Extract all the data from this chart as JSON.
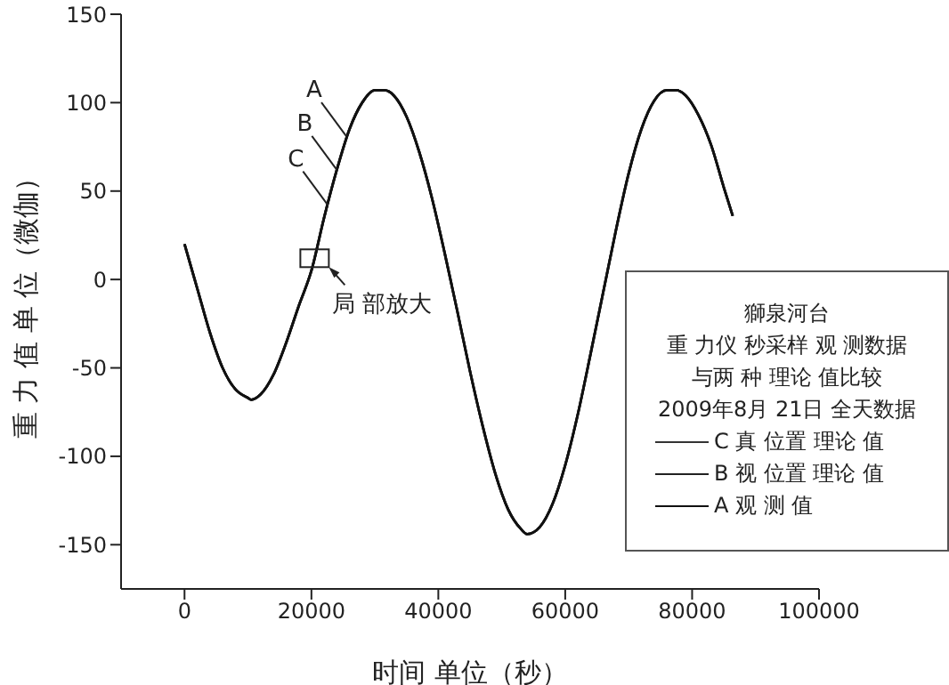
{
  "chart_data": {
    "type": "line",
    "xlabel": "时间 单位（秒）",
    "ylabel": "重 力 值 单 位（微伽）",
    "legend_title": "獅泉河台",
    "legend": "bottom right",
    "grid": false,
    "xlim": [
      -10000,
      100000
    ],
    "xticks": [
      0,
      20000,
      40000,
      60000,
      80000,
      100000
    ],
    "ylim": [
      -175,
      150
    ],
    "yticks": [
      -150,
      -100,
      -50,
      0,
      50,
      100,
      150
    ],
    "x": [
      0,
      2000,
      4000,
      6000,
      8000,
      10000,
      10500,
      12000,
      14000,
      16000,
      18000,
      20000,
      22000,
      24000,
      26000,
      28000,
      30000,
      31500,
      33000,
      35000,
      37000,
      39000,
      41000,
      43000,
      45000,
      47000,
      49000,
      51000,
      53000,
      54000,
      55000,
      56000,
      58000,
      60000,
      62000,
      64000,
      66000,
      68000,
      70000,
      72000,
      74000,
      76000,
      77500,
      79000,
      81000,
      83000,
      85000,
      86400
    ],
    "series": [
      {
        "name": "C 真 位置 理论 值",
        "color": "#333333",
        "values": [
          20,
          -5,
          -30,
          -50,
          -62,
          -67,
          -68,
          -65,
          -54,
          -36,
          -15,
          5,
          35,
          62,
          85,
          100,
          107,
          107,
          104,
          92,
          72,
          46,
          15,
          -18,
          -52,
          -83,
          -110,
          -130,
          -141,
          -144,
          -143,
          -140,
          -127,
          -105,
          -76,
          -42,
          -7,
          28,
          60,
          85,
          101,
          107,
          107,
          104,
          93,
          76,
          52,
          36
        ]
      },
      {
        "name": "B 视 位置 理论 值",
        "color": "#222222",
        "values": [
          20,
          -5,
          -30,
          -50,
          -62,
          -67,
          -68,
          -65,
          -54,
          -36,
          -15,
          5,
          35,
          62,
          85,
          100,
          107,
          107,
          104,
          92,
          72,
          46,
          15,
          -18,
          -52,
          -83,
          -110,
          -130,
          -141,
          -144,
          -143,
          -140,
          -127,
          -105,
          -76,
          -42,
          -7,
          28,
          60,
          85,
          101,
          107,
          107,
          104,
          93,
          76,
          52,
          36
        ]
      },
      {
        "name": "A 观 测 值",
        "color": "#111111",
        "values": [
          20,
          -5,
          -30,
          -50,
          -62,
          -67,
          -68,
          -65,
          -54,
          -36,
          -15,
          5,
          35,
          62,
          85,
          100,
          107,
          107,
          104,
          92,
          72,
          46,
          15,
          -18,
          -52,
          -83,
          -110,
          -130,
          -141,
          -144,
          -143,
          -140,
          -127,
          -105,
          -76,
          -42,
          -7,
          28,
          60,
          85,
          101,
          107,
          107,
          104,
          93,
          76,
          52,
          36
        ]
      }
    ],
    "annotations": [
      {
        "text": "A",
        "x": 25500,
        "y": 81
      },
      {
        "text": "B",
        "x": 24000,
        "y": 62
      },
      {
        "text": "C",
        "x": 22600,
        "y": 42
      },
      {
        "text": "局 部放大",
        "x": 20500,
        "y": 12
      },
      "重 力仪 秒采样 观 测数据",
      "与两 种 理论 值比较",
      "2009年8月 21日 全天数据"
    ]
  }
}
